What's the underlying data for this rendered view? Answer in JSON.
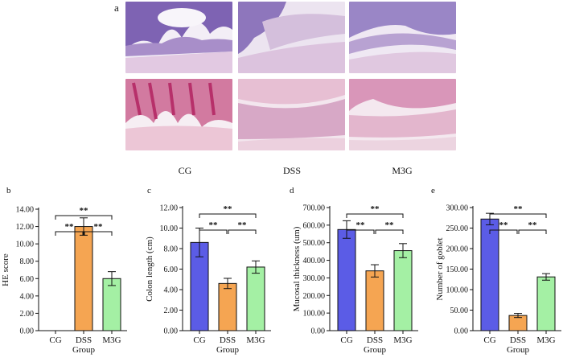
{
  "figure": {
    "panel_a": {
      "letter": "a",
      "groups": [
        "CG",
        "DSS",
        "M3G"
      ]
    }
  },
  "chart_data": [
    {
      "type": "bar",
      "letter": "b",
      "categories": [
        "CG",
        "DSS",
        "M3G"
      ],
      "values": [
        0,
        12.0,
        6.0
      ],
      "errors": [
        0,
        1.0,
        0.8
      ],
      "colors": [
        "#5b5ce6",
        "#f5a552",
        "#a4f0a4"
      ],
      "xlabel": "Group",
      "ylabel": "HE score",
      "ylim": [
        0,
        14
      ],
      "yticks": [
        "0.00",
        "2.00",
        "4.00",
        "6.00",
        "8.00",
        "10.00",
        "12.00",
        "14.00"
      ],
      "significance": [
        "**",
        "**",
        "**"
      ]
    },
    {
      "type": "bar",
      "letter": "c",
      "categories": [
        "CG",
        "DSS",
        "M3G"
      ],
      "values": [
        8.6,
        4.6,
        6.2
      ],
      "errors": [
        1.4,
        0.5,
        0.6
      ],
      "colors": [
        "#5b5ce6",
        "#f5a552",
        "#a4f0a4"
      ],
      "xlabel": "Group",
      "ylabel": "Colon length (cm)",
      "ylim": [
        0,
        12
      ],
      "yticks": [
        "0.00",
        "2.00",
        "4.00",
        "6.00",
        "8.00",
        "10.00",
        "12.00"
      ],
      "significance": [
        "**",
        "**",
        "**"
      ]
    },
    {
      "type": "bar",
      "letter": "d",
      "categories": [
        "CG",
        "DSS",
        "M3G"
      ],
      "values": [
        575,
        340,
        455
      ],
      "errors": [
        50,
        35,
        40
      ],
      "colors": [
        "#5b5ce6",
        "#f5a552",
        "#a4f0a4"
      ],
      "xlabel": "Group",
      "ylabel": "Mucosal thickness (um)",
      "ylim": [
        0,
        700
      ],
      "yticks": [
        "0.00",
        "100.00",
        "200.00",
        "300.00",
        "400.00",
        "500.00",
        "600.00",
        "700.00"
      ],
      "significance": [
        "**",
        "**",
        "**"
      ]
    },
    {
      "type": "bar",
      "letter": "e",
      "categories": [
        "CG",
        "DSS",
        "M3G"
      ],
      "values": [
        272,
        37,
        131
      ],
      "errors": [
        14,
        5,
        8
      ],
      "colors": [
        "#5b5ce6",
        "#f5a552",
        "#a4f0a4"
      ],
      "xlabel": "Group",
      "ylabel": "Number of goblet",
      "ylim": [
        0,
        300
      ],
      "yticks": [
        "0.00",
        "50.00",
        "100.00",
        "150.00",
        "200.00",
        "250.00",
        "300.00"
      ],
      "significance": [
        "**",
        "**",
        "**"
      ]
    }
  ]
}
